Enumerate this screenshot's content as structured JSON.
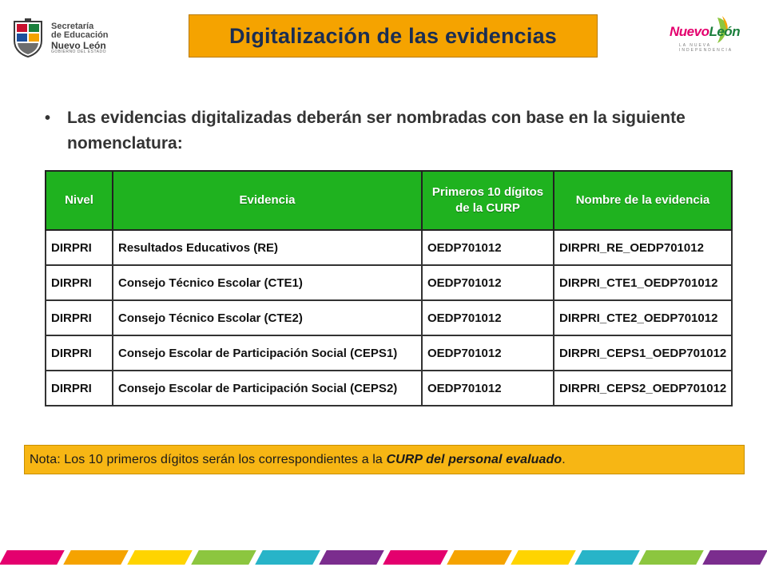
{
  "header": {
    "title": "Digitalización de las evidencias",
    "left_logo": {
      "line1": "Secretaría",
      "line2": "de Educación",
      "line3": "Nuevo León",
      "line4": "GOBIERNO DEL ESTADO"
    },
    "right_logo": {
      "word1": "Nuevo",
      "word2": "León",
      "tagline": "LA NUEVA INDEPENDENCIA"
    }
  },
  "bullet": {
    "text": "Las evidencias digitalizadas deberán ser nombradas con base en la siguiente nomenclatura:"
  },
  "table": {
    "headers": [
      "Nivel",
      "Evidencia",
      "Primeros 10 dígitos de la CURP",
      "Nombre de la evidencia"
    ],
    "rows": [
      [
        "DIRPRI",
        "Resultados Educativos (RE)",
        "OEDP701012",
        "DIRPRI_RE_OEDP701012"
      ],
      [
        "DIRPRI",
        "Consejo Técnico Escolar (CTE1)",
        "OEDP701012",
        "DIRPRI_CTE1_OEDP701012"
      ],
      [
        "DIRPRI",
        "Consejo Técnico Escolar (CTE2)",
        "OEDP701012",
        "DIRPRI_CTE2_OEDP701012"
      ],
      [
        "DIRPRI",
        "Consejo Escolar de Participación Social (CEPS1)",
        "OEDP701012",
        "DIRPRI_CEPS1_OEDP701012"
      ],
      [
        "DIRPRI",
        "Consejo Escolar de Participación Social (CEPS2)",
        "OEDP701012",
        "DIRPRI_CEPS2_OEDP701012"
      ]
    ]
  },
  "note": {
    "prefix": "Nota: Los 10 primeros dígitos serán los correspondientes a la ",
    "emphasis": "CURP del personal evaluado",
    "suffix": "."
  },
  "colors": {
    "title_bg": "#f5a300",
    "title_text": "#1a2d52",
    "table_header": "#1fb21f",
    "note_bg": "#f7b614",
    "stripe": [
      "#e4006e",
      "#f5a300",
      "#ffd400",
      "#8cc63f",
      "#28b4c8",
      "#7b2d8e",
      "#e4006e",
      "#f5a300",
      "#ffd400",
      "#28b4c8",
      "#8cc63f",
      "#7b2d8e"
    ]
  }
}
